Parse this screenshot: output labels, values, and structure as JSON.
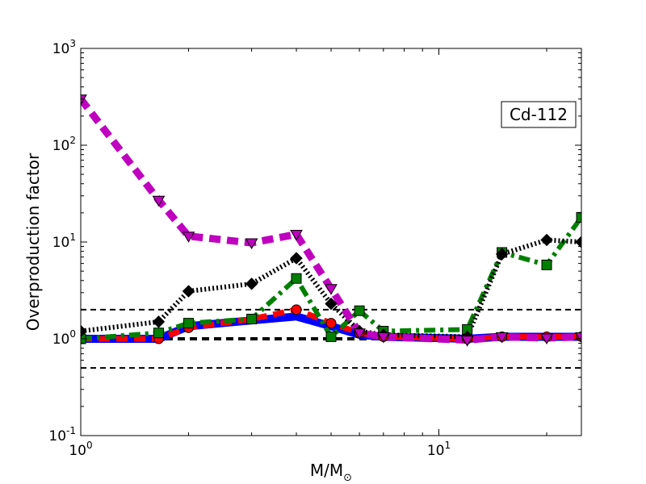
{
  "chart_data": {
    "type": "line",
    "xscale": "log",
    "yscale": "log",
    "xlim": [
      1,
      25
    ],
    "ylim": [
      0.1,
      1000
    ],
    "xlabel": "M/M",
    "xlabel_subscript": "⊙",
    "ylabel": "Overproduction factor",
    "annotation": "Cd-112",
    "annotation_position": "top-right",
    "x_ticks": [
      {
        "value": 1,
        "base": "10",
        "exp": "0"
      },
      {
        "value": 10,
        "base": "10",
        "exp": "1"
      }
    ],
    "y_ticks": [
      {
        "value": 0.1,
        "base": "10",
        "exp": "-1"
      },
      {
        "value": 1,
        "base": "10",
        "exp": "0"
      },
      {
        "value": 10,
        "base": "10",
        "exp": "1"
      },
      {
        "value": 100,
        "base": "10",
        "exp": "2"
      },
      {
        "value": 1000,
        "base": "10",
        "exp": "3"
      }
    ],
    "reference_lines": [
      {
        "y": 2.0,
        "color": "#000000",
        "style": "dashed"
      },
      {
        "y": 1.0,
        "color": "#000000",
        "style": "dashed-bold"
      },
      {
        "y": 0.5,
        "color": "#000000",
        "style": "dashed"
      }
    ],
    "series": [
      {
        "color": "#0000ff",
        "style": "solid",
        "marker": "none",
        "x": [
          1,
          1.65,
          2,
          3,
          4,
          5,
          6,
          7,
          12,
          15,
          20,
          25
        ],
        "y": [
          1.0,
          1.0,
          1.35,
          1.55,
          1.7,
          1.35,
          1.1,
          1.05,
          1.0,
          1.05,
          1.05,
          1.05
        ]
      },
      {
        "color": "#ff0000",
        "style": "dashed",
        "marker": "circle",
        "x": [
          1,
          1.65,
          2,
          3,
          4,
          5,
          6,
          7,
          12,
          15,
          20,
          25
        ],
        "y": [
          1.0,
          1.0,
          1.3,
          1.6,
          2.0,
          1.45,
          1.15,
          1.05,
          1.0,
          1.05,
          1.05,
          1.05
        ]
      },
      {
        "color": "#008000",
        "style": "dashdot",
        "marker": "square",
        "x": [
          1,
          1.65,
          2,
          3,
          4,
          5,
          6,
          7,
          12,
          15,
          20,
          25
        ],
        "y": [
          1.0,
          1.15,
          1.45,
          1.6,
          4.2,
          1.05,
          1.95,
          1.2,
          1.25,
          7.8,
          5.8,
          18
        ]
      },
      {
        "color": "#000000",
        "style": "dotted",
        "marker": "diamond",
        "x": [
          1,
          1.65,
          2,
          3,
          4,
          5,
          6,
          7,
          12,
          15,
          20,
          25
        ],
        "y": [
          1.2,
          1.5,
          3.1,
          3.7,
          6.8,
          2.3,
          1.2,
          1.1,
          1.05,
          7.5,
          10.5,
          10
        ]
      },
      {
        "color": "#bf00bf",
        "style": "dashed-heavy",
        "marker": "triangle-down",
        "x": [
          1,
          1.65,
          2,
          3,
          4,
          5,
          6,
          7,
          12,
          15,
          20,
          25
        ],
        "y": [
          300,
          27,
          11.5,
          9.8,
          12,
          3.3,
          1.15,
          1.05,
          0.97,
          1.05,
          1.02,
          1.05
        ]
      }
    ]
  }
}
